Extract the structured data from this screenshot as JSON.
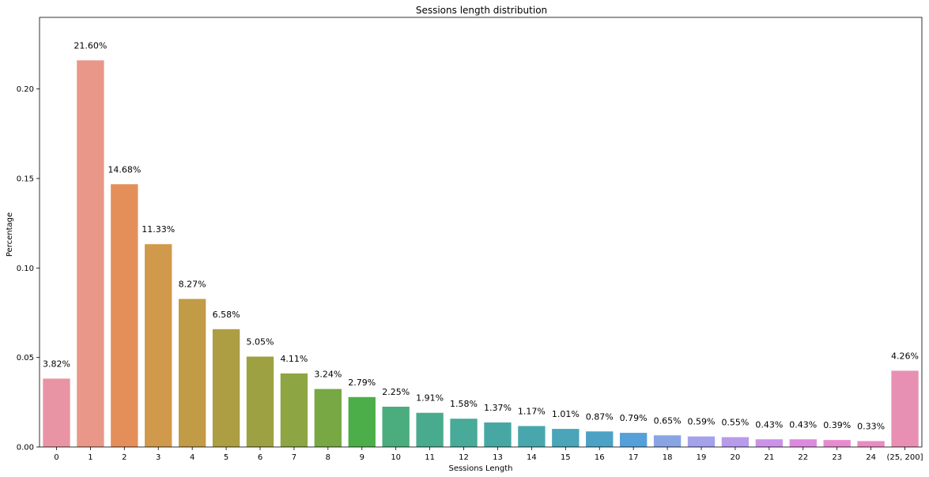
{
  "chart_data": {
    "type": "bar",
    "title": "Sessions length distribution",
    "xlabel": "Sessions Length",
    "ylabel": "Percentage",
    "ylim": [
      0,
      0.24
    ],
    "yticks": [
      "0.00",
      "0.05",
      "0.10",
      "0.15",
      "0.20"
    ],
    "ytick_values": [
      0,
      0.05,
      0.1,
      0.15,
      0.2
    ],
    "grid": false,
    "categories": [
      "0",
      "1",
      "2",
      "3",
      "4",
      "5",
      "6",
      "7",
      "8",
      "9",
      "10",
      "11",
      "12",
      "13",
      "14",
      "15",
      "16",
      "17",
      "18",
      "19",
      "20",
      "21",
      "22",
      "23",
      "24",
      "(25, 200]"
    ],
    "values": [
      0.0382,
      0.216,
      0.1468,
      0.1133,
      0.0827,
      0.0658,
      0.0505,
      0.0411,
      0.0324,
      0.0279,
      0.0225,
      0.0191,
      0.0158,
      0.0137,
      0.0117,
      0.0101,
      0.0087,
      0.0079,
      0.0065,
      0.0059,
      0.0055,
      0.0043,
      0.0043,
      0.0039,
      0.0033,
      0.0426
    ],
    "data_labels": [
      "3.82%",
      "21.60%",
      "14.68%",
      "11.33%",
      "8.27%",
      "6.58%",
      "5.05%",
      "4.11%",
      "3.24%",
      "2.79%",
      "2.25%",
      "1.91%",
      "1.58%",
      "1.37%",
      "1.17%",
      "1.01%",
      "0.87%",
      "0.79%",
      "0.65%",
      "0.59%",
      "0.55%",
      "0.43%",
      "0.43%",
      "0.39%",
      "0.33%",
      "4.26%"
    ],
    "colors": [
      "#e994a4",
      "#e99788",
      "#e48f5a",
      "#d0994b",
      "#c19b46",
      "#ad9d43",
      "#9da142",
      "#8ea543",
      "#77a844",
      "#4cae49",
      "#4bac7e",
      "#49ab8d",
      "#48aa99",
      "#47a8a3",
      "#48a7ac",
      "#49a5b7",
      "#4ba2c5",
      "#56a0d9",
      "#88a4e3",
      "#a3a2eb",
      "#b89ceb",
      "#cc92e8",
      "#dd8ade",
      "#e78bcf",
      "#e98cc1",
      "#e890b3"
    ]
  }
}
